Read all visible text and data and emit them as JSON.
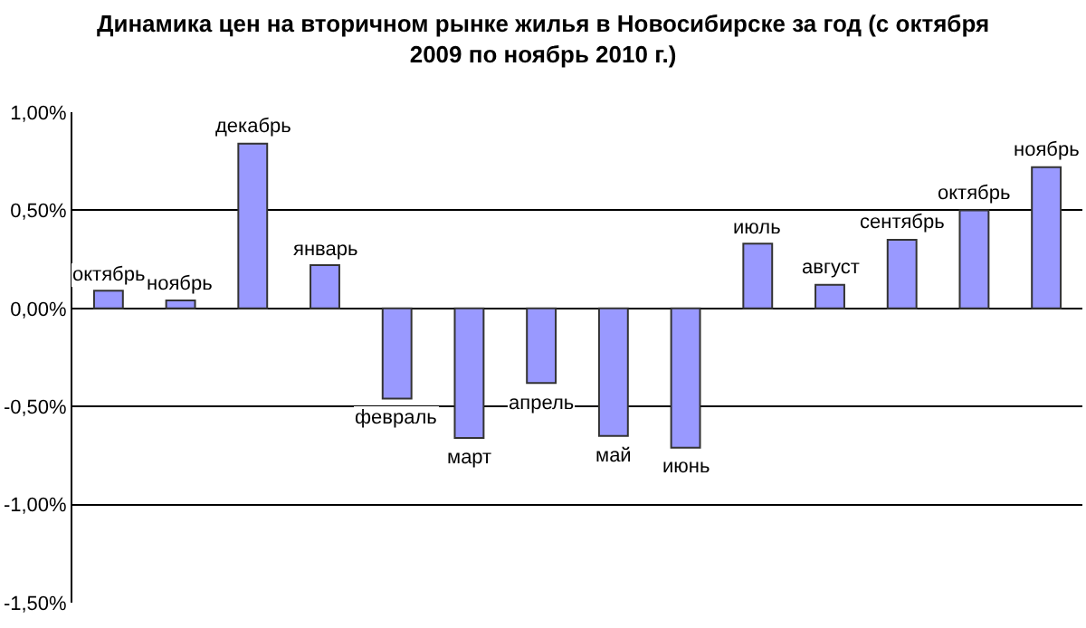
{
  "chart_data": {
    "type": "bar",
    "title": "Динамика цен на вторичном рынке жилья в Новосибирске за год (с октября 2009 по ноябрь 2010 г.)",
    "categories": [
      "октябрь",
      "ноябрь",
      "декабрь",
      "январь",
      "февраль",
      "март",
      "апрель",
      "май",
      "июнь",
      "июль",
      "август",
      "сентябрь",
      "октябрь",
      "ноябрь"
    ],
    "values": [
      0.09,
      0.04,
      0.84,
      0.22,
      -0.46,
      -0.66,
      -0.38,
      -0.65,
      -0.71,
      0.33,
      0.12,
      0.35,
      0.5,
      0.72
    ],
    "color": "#9999ff",
    "ylim": [
      -1.5,
      1.0
    ],
    "yticks": [
      {
        "value": -1.5,
        "label": "-1,50%"
      },
      {
        "value": -1.0,
        "label": "-1,00%"
      },
      {
        "value": -0.5,
        "label": "-0,50%"
      },
      {
        "value": 0,
        "label": "0,00%"
      },
      {
        "value": 0.5,
        "label": "0,50%"
      },
      {
        "value": 1.0,
        "label": "1,00%"
      }
    ],
    "grid": "y",
    "legend": false
  }
}
